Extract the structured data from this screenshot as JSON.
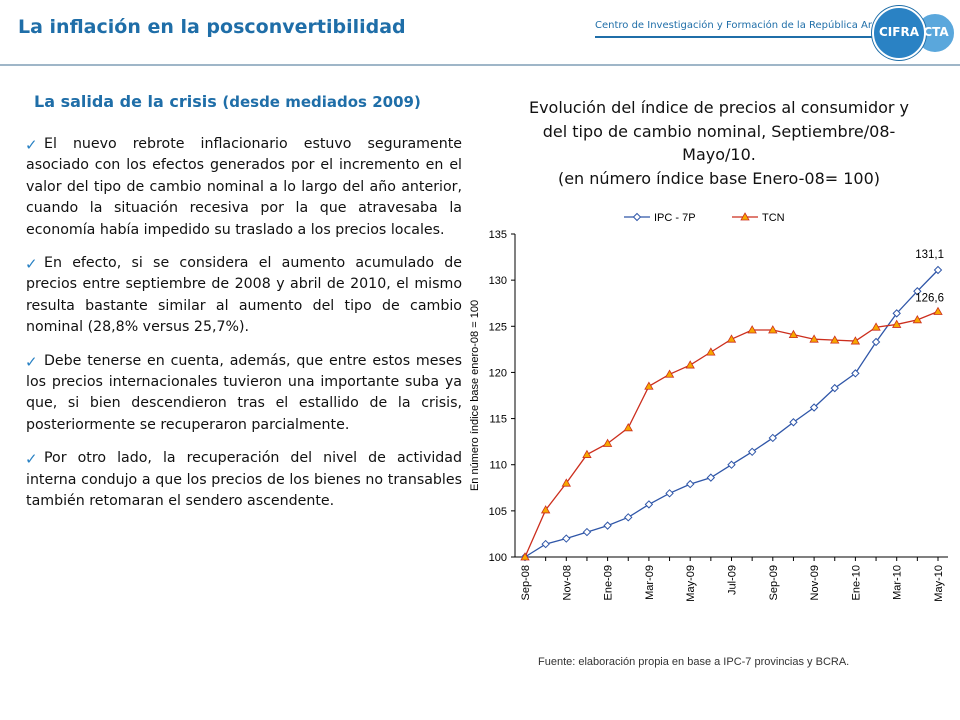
{
  "header": {
    "title": "La inflación en la posconvertibilidad",
    "center_name": "Centro de Investigación y Formación de la República Argentina",
    "logo_left": "CIFRA",
    "logo_right": "CTA"
  },
  "section": {
    "title": "La salida de la crisis",
    "subtitle": "(desde mediados 2009)"
  },
  "bullets": [
    "El nuevo rebrote inflacionario estuvo seguramente asociado con los efectos generados por el incremento en el valor del tipo de cambio nominal a lo largo del año anterior, cuando la situación recesiva por la que atravesaba la economía había impedido su traslado a los precios locales.",
    "En efecto, si se considera el aumento acumulado de precios entre septiembre de 2008 y abril de 2010, el mismo resulta bastante similar al aumento del tipo de cambio nominal (28,8% versus 25,7%).",
    "Debe tenerse en cuenta, además, que entre estos meses los precios internacionales tuvieron una importante suba ya que, si bien descendieron tras el estallido de la crisis, posteriormente se recuperaron parcialmente.",
    "Por otro lado, la recuperación del nivel de actividad interna condujo a que los precios de los bienes no transables también retomaran el sendero ascendente."
  ],
  "chart_title": {
    "line1": "Evolución del índice de precios al consumidor y",
    "line2": "del tipo de cambio nominal, Septiembre/08-",
    "line3": "Mayo/10.",
    "line4": "(en número índice base Enero-08= 100)"
  },
  "source": "Fuente: elaboración propia en base a IPC-7 provincias y BCRA.",
  "colors": {
    "accent": "#1f6ea8",
    "ipc_line": "#2f56a8",
    "tcn_line": "#cc2e1d",
    "tcn_marker": "#f7a800"
  },
  "chart_data": {
    "type": "line",
    "ylabel": "En número índice base enero-08 = 100",
    "ylim": [
      100,
      135
    ],
    "yticks": [
      100,
      105,
      110,
      115,
      120,
      125,
      130,
      135
    ],
    "categories": [
      "Sep-08",
      "Oct-08",
      "Nov-08",
      "Dic-08",
      "Ene-09",
      "Feb-09",
      "Mar-09",
      "Abr-09",
      "May-09",
      "Jun-09",
      "Jul-09",
      "Ago-09",
      "Sep-09",
      "Oct-09",
      "Nov-09",
      "Dic-09",
      "Ene-10",
      "Feb-10",
      "Mar-10",
      "Abr-10",
      "May-10"
    ],
    "tick_labels": [
      "Sep-08",
      "Nov-08",
      "Ene-09",
      "Mar-09",
      "May-09",
      "Jul-09",
      "Sep-09",
      "Nov-09",
      "Ene-10",
      "Mar-10",
      "May-10"
    ],
    "legend_position": "top",
    "series": [
      {
        "name": "IPC - 7P",
        "marker": "diamond",
        "values": [
          100,
          101.4,
          102.0,
          102.7,
          103.4,
          104.3,
          105.7,
          106.9,
          107.9,
          108.6,
          110.0,
          111.4,
          112.9,
          114.6,
          116.2,
          118.3,
          119.9,
          123.3,
          126.4,
          128.8,
          131.1
        ],
        "end_label": "131,1"
      },
      {
        "name": "TCN",
        "marker": "triangle",
        "values": [
          100,
          105.1,
          108.0,
          111.1,
          112.3,
          114.0,
          118.5,
          119.8,
          120.8,
          122.2,
          123.6,
          124.6,
          124.6,
          124.1,
          123.6,
          123.5,
          123.4,
          124.9,
          125.2,
          125.7,
          126.6
        ],
        "end_label": "126,6"
      }
    ]
  }
}
